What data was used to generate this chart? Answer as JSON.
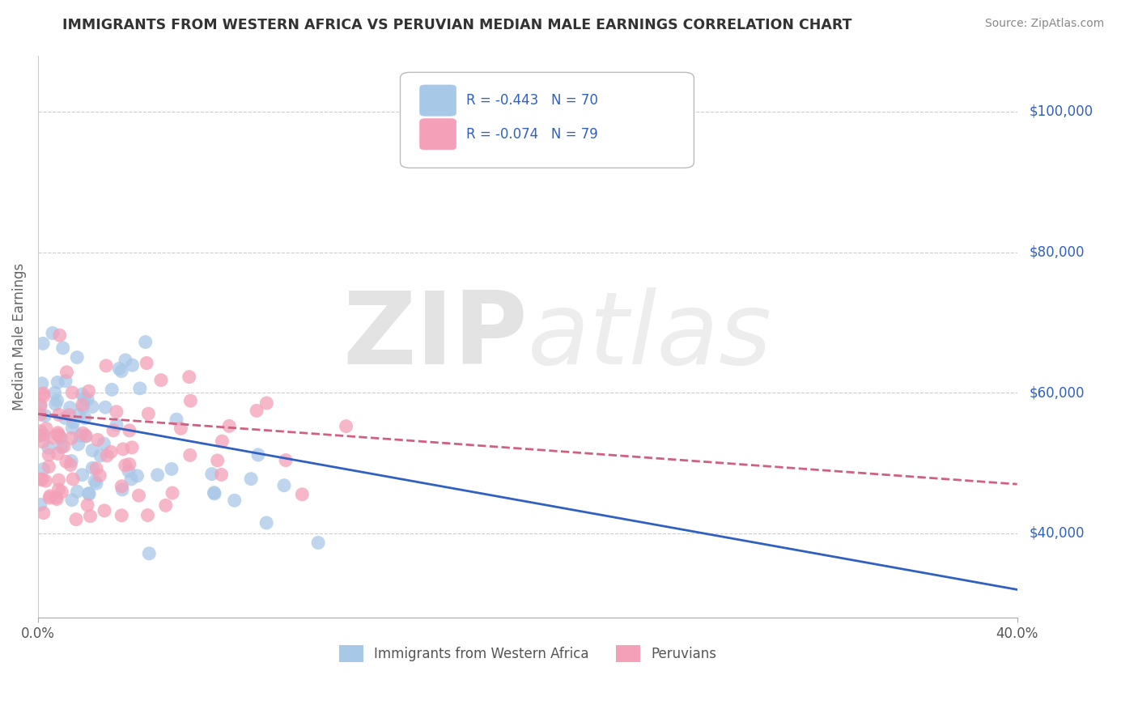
{
  "title": "IMMIGRANTS FROM WESTERN AFRICA VS PERUVIAN MEDIAN MALE EARNINGS CORRELATION CHART",
  "source": "Source: ZipAtlas.com",
  "ylabel": "Median Male Earnings",
  "watermark_zip": "ZIP",
  "watermark_atlas": "atlas",
  "series": [
    {
      "label": "Immigrants from Western Africa",
      "R": -0.443,
      "N": 70,
      "color": "#a8c8e8",
      "line_color": "#3060c0",
      "line_style": "-",
      "seed": 7
    },
    {
      "label": "Peruvians",
      "R": -0.074,
      "N": 79,
      "color": "#f4a0b8",
      "line_color": "#d06080",
      "line_style": "--",
      "seed": 13
    }
  ],
  "xlim": [
    0.0,
    0.4
  ],
  "ylim": [
    28000,
    108000
  ],
  "yticks": [
    40000,
    60000,
    80000,
    100000
  ],
  "ytick_labels": [
    "$40,000",
    "$60,000",
    "$80,000",
    "$100,000"
  ],
  "xtick_positions": [
    0.0,
    0.4
  ],
  "xtick_labels": [
    "0.0%",
    "40.0%"
  ],
  "grid_color": "#cccccc",
  "background_color": "#ffffff",
  "title_color": "#333333",
  "axis_right_color": "#3060c0",
  "legend_text_color": "#3060c0"
}
